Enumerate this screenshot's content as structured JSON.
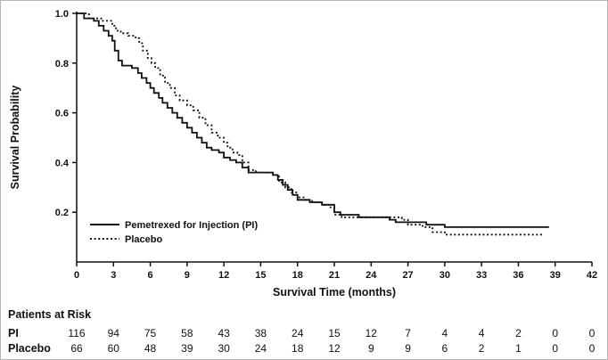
{
  "chart_data": {
    "type": "line",
    "subtype": "kaplan-meier-step",
    "title": "",
    "xlabel": "Survival Time (months)",
    "ylabel": "Survival Probability",
    "xlim": [
      0,
      42
    ],
    "ylim": [
      0,
      1.0
    ],
    "x_ticks": [
      0,
      3,
      6,
      9,
      12,
      15,
      18,
      21,
      24,
      27,
      30,
      33,
      36,
      39,
      42
    ],
    "y_ticks": [
      0.2,
      0.4,
      0.6,
      0.8,
      1.0
    ],
    "y_tick_labels": [
      "0.2",
      "0.4",
      "0.6",
      "0.8",
      "1.0"
    ],
    "grid": false,
    "legend_position": "lower-left-inside",
    "line_color": "#111111",
    "series": [
      {
        "name": "Pemetrexed for Injection (PI)",
        "style": "solid",
        "color": "#111111",
        "points": [
          [
            0,
            1.0
          ],
          [
            0.6,
            0.98
          ],
          [
            1.4,
            0.97
          ],
          [
            1.8,
            0.95
          ],
          [
            2.2,
            0.93
          ],
          [
            2.6,
            0.91
          ],
          [
            2.9,
            0.89
          ],
          [
            3.1,
            0.85
          ],
          [
            3.4,
            0.81
          ],
          [
            3.7,
            0.79
          ],
          [
            4.5,
            0.78
          ],
          [
            5.0,
            0.76
          ],
          [
            5.3,
            0.74
          ],
          [
            5.7,
            0.72
          ],
          [
            6.0,
            0.7
          ],
          [
            6.3,
            0.68
          ],
          [
            6.7,
            0.66
          ],
          [
            7.0,
            0.64
          ],
          [
            7.4,
            0.62
          ],
          [
            7.8,
            0.6
          ],
          [
            8.2,
            0.58
          ],
          [
            8.6,
            0.56
          ],
          [
            9.0,
            0.54
          ],
          [
            9.4,
            0.52
          ],
          [
            9.8,
            0.5
          ],
          [
            10.2,
            0.48
          ],
          [
            10.6,
            0.46
          ],
          [
            11.0,
            0.45
          ],
          [
            11.6,
            0.44
          ],
          [
            12.0,
            0.42
          ],
          [
            12.5,
            0.41
          ],
          [
            13.0,
            0.4
          ],
          [
            13.5,
            0.38
          ],
          [
            14.0,
            0.36
          ],
          [
            16.0,
            0.35
          ],
          [
            16.4,
            0.33
          ],
          [
            16.8,
            0.31
          ],
          [
            17.2,
            0.29
          ],
          [
            17.6,
            0.27
          ],
          [
            18.0,
            0.25
          ],
          [
            19.0,
            0.24
          ],
          [
            20.0,
            0.23
          ],
          [
            21.0,
            0.2
          ],
          [
            21.5,
            0.19
          ],
          [
            23.0,
            0.18
          ],
          [
            25.5,
            0.17
          ],
          [
            26.0,
            0.16
          ],
          [
            28.5,
            0.15
          ],
          [
            30.0,
            0.14
          ],
          [
            38.5,
            0.14
          ]
        ]
      },
      {
        "name": "Placebo",
        "style": "dotted",
        "color": "#111111",
        "points": [
          [
            0,
            1.0
          ],
          [
            1.0,
            0.98
          ],
          [
            2.0,
            0.97
          ],
          [
            2.9,
            0.95
          ],
          [
            3.2,
            0.93
          ],
          [
            3.6,
            0.92
          ],
          [
            4.2,
            0.91
          ],
          [
            4.8,
            0.9
          ],
          [
            5.1,
            0.88
          ],
          [
            5.4,
            0.85
          ],
          [
            5.8,
            0.82
          ],
          [
            6.1,
            0.8
          ],
          [
            6.4,
            0.78
          ],
          [
            6.8,
            0.75
          ],
          [
            7.2,
            0.72
          ],
          [
            7.6,
            0.7
          ],
          [
            8.0,
            0.67
          ],
          [
            8.4,
            0.65
          ],
          [
            9.0,
            0.63
          ],
          [
            9.5,
            0.61
          ],
          [
            10.0,
            0.58
          ],
          [
            10.5,
            0.55
          ],
          [
            11.0,
            0.52
          ],
          [
            11.5,
            0.5
          ],
          [
            12.0,
            0.48
          ],
          [
            12.3,
            0.46
          ],
          [
            12.7,
            0.44
          ],
          [
            13.1,
            0.43
          ],
          [
            13.5,
            0.4
          ],
          [
            14.0,
            0.37
          ],
          [
            14.6,
            0.36
          ],
          [
            16.0,
            0.35
          ],
          [
            16.5,
            0.32
          ],
          [
            17.0,
            0.3
          ],
          [
            17.5,
            0.28
          ],
          [
            18.0,
            0.26
          ],
          [
            18.6,
            0.25
          ],
          [
            19.2,
            0.24
          ],
          [
            20.0,
            0.23
          ],
          [
            20.6,
            0.22
          ],
          [
            21.0,
            0.19
          ],
          [
            21.6,
            0.18
          ],
          [
            26.5,
            0.17
          ],
          [
            27.0,
            0.15
          ],
          [
            28.2,
            0.14
          ],
          [
            29.0,
            0.12
          ],
          [
            30.0,
            0.11
          ],
          [
            38.0,
            0.11
          ]
        ]
      }
    ]
  },
  "risk_table": {
    "title": "Patients at Risk",
    "times": [
      0,
      3,
      6,
      9,
      12,
      15,
      18,
      21,
      24,
      27,
      30,
      33,
      36,
      39,
      42
    ],
    "rows": [
      {
        "label": "PI",
        "counts": [
          116,
          94,
          75,
          58,
          43,
          38,
          24,
          15,
          12,
          7,
          4,
          4,
          2,
          0,
          0
        ]
      },
      {
        "label": "Placebo",
        "counts": [
          66,
          60,
          48,
          39,
          30,
          24,
          18,
          12,
          9,
          9,
          6,
          2,
          1,
          0,
          0
        ]
      }
    ]
  }
}
